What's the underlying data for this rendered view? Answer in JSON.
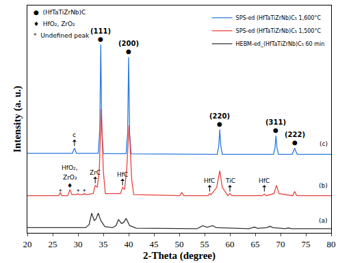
{
  "chart_data": {
    "type": "line",
    "x_label": "2-Theta (degree)",
    "y_label": "Intensity (a. u.)",
    "xlim": [
      20,
      80
    ],
    "xticks": [
      20,
      25,
      30,
      35,
      40,
      45,
      50,
      55,
      60,
      65,
      70,
      75,
      80
    ],
    "ylim": [
      0,
      110
    ],
    "tick_labels": "x",
    "grid": false,
    "legend": "top right",
    "series": [
      {
        "name": "SPS-ed (HfTaTiZrNb)C₅ 1,600°C",
        "color": "#2a7ae2",
        "x": [
          20,
          28.9,
          29.3,
          29.7,
          34.0,
          34.3,
          34.5,
          34.7,
          35.0,
          39.5,
          39.8,
          40.0,
          40.2,
          40.5,
          57.5,
          57.8,
          58.0,
          58.2,
          58.5,
          68.6,
          68.9,
          69.1,
          69.3,
          69.6,
          72.3,
          72.6,
          72.8,
          73.0,
          73.3,
          80
        ],
        "values": [
          38.5,
          38.5,
          41,
          38.5,
          38.5,
          50,
          91,
          50,
          38.3,
          38.3,
          48,
          85,
          48,
          38.2,
          38,
          42,
          50,
          42,
          38,
          38,
          41,
          47,
          41,
          38,
          38,
          39.5,
          41,
          39.5,
          38,
          38
        ]
      },
      {
        "name": "SPS-ed (HfTaTiZrNb)C₅ 1,500°C",
        "color": "#e8413a",
        "x": [
          20,
          26.2,
          26.5,
          26.8,
          28.0,
          28.4,
          28.8,
          29.8,
          30.0,
          30.2,
          31.0,
          31.3,
          31.6,
          33.0,
          33.4,
          33.8,
          34.2,
          34.6,
          35.0,
          35.4,
          38.4,
          38.8,
          39.2,
          39.6,
          40.1,
          40.6,
          41.0,
          50.1,
          50.5,
          50.9,
          55.7,
          56.0,
          56.3,
          57.4,
          58.0,
          58.5,
          59.6,
          60.0,
          60.4,
          66.4,
          66.8,
          67.2,
          68.7,
          69.2,
          69.7,
          72.4,
          72.8,
          73.2,
          80
        ],
        "values": [
          18,
          18,
          19.5,
          18,
          18,
          21,
          18.5,
          18.5,
          19,
          18.5,
          18.5,
          19,
          18.5,
          19,
          23,
          22,
          30,
          60,
          30,
          19,
          19,
          22,
          21,
          30,
          52,
          26,
          18.5,
          18,
          19.5,
          18,
          18,
          19,
          18.5,
          22,
          30,
          22,
          18,
          19,
          18,
          18,
          18.8,
          18,
          19,
          23,
          19,
          18,
          20,
          18,
          18
        ]
      },
      {
        "name": "HEBM-ed_(HfTaTiZrNb)C₅ 60 min",
        "color": "#333333",
        "x": [
          20,
          31.5,
          32.2,
          32.7,
          33.2,
          33.5,
          34.0,
          34.5,
          35.3,
          36.8,
          37.5,
          38.0,
          38.6,
          39.0,
          39.5,
          40.2,
          41.5,
          53.5,
          54.3,
          54.6,
          55.5,
          56.0,
          56.6,
          57.3,
          63.8,
          64.5,
          64.8,
          65.5,
          67.3,
          67.9,
          68.5,
          71.0,
          71.5,
          72.2,
          80
        ],
        "values": [
          2.5,
          2.5,
          4,
          9.5,
          6,
          6.5,
          9.5,
          6,
          3,
          2.5,
          3.5,
          6.5,
          4.5,
          5,
          7,
          3.5,
          2.3,
          2,
          3,
          3.5,
          2.7,
          3,
          3.5,
          2.5,
          2,
          2.5,
          2.8,
          2.2,
          2.5,
          3.2,
          2.5,
          2,
          2.4,
          2,
          2
        ]
      }
    ],
    "phase_legend": [
      {
        "symbol": "●",
        "text": "(HfTaTiZrNb)C"
      },
      {
        "symbol": "♦",
        "text": "HfO₂, ZrO₂"
      },
      {
        "symbol": "*",
        "text": "Undefined peak"
      }
    ],
    "hkl_labels": [
      {
        "text": "(111)",
        "symbol": "●",
        "x": 34.5,
        "y": 91
      },
      {
        "text": "(200)",
        "symbol": "●",
        "x": 40.0,
        "y": 85
      },
      {
        "text": "(220)",
        "symbol": "●",
        "x": 58.0,
        "y": 50
      },
      {
        "text": "(311)",
        "symbol": "●",
        "x": 69.1,
        "y": 47
      },
      {
        "text": "(222)",
        "symbol": "●",
        "x": 72.8,
        "y": 41
      }
    ],
    "peak_labels": [
      {
        "text": "c",
        "x": 29.3,
        "y": 42
      },
      {
        "text": "ZrC",
        "x": 33.4,
        "y": 24
      },
      {
        "text": "HfC",
        "x": 38.8,
        "y": 23
      },
      {
        "text": "HfC",
        "x": 56.0,
        "y": 20
      },
      {
        "text": "TiC",
        "x": 60.0,
        "y": 20
      },
      {
        "text": "HfC",
        "x": 66.8,
        "y": 20
      }
    ],
    "annotations": [
      {
        "text": "♦",
        "x": 28.4,
        "y": 23
      },
      {
        "text": "ZrO₂",
        "x": 28.4,
        "y": 27
      },
      {
        "text": "HfO₂,",
        "x": 28.4,
        "y": 31.5
      },
      {
        "text": "*",
        "x": 26.5,
        "y": 20
      },
      {
        "text": "*",
        "x": 30.0,
        "y": 20
      },
      {
        "text": "*",
        "x": 31.3,
        "y": 20
      },
      {
        "text": "(c)",
        "x": 78.5,
        "y": 43
      },
      {
        "text": "(b)",
        "x": 78.5,
        "y": 23
      },
      {
        "text": "(a)",
        "x": 78.5,
        "y": 6
      }
    ]
  }
}
